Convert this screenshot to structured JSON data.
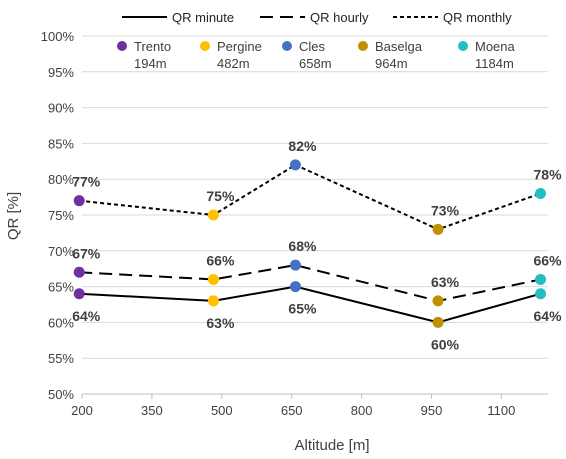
{
  "chart_data": {
    "type": "line",
    "xlabel": "Altitude [m]",
    "ylabel": "QR [%]",
    "xlim": [
      200,
      1200
    ],
    "ylim": [
      50,
      100
    ],
    "xticks": [
      "200",
      "350",
      "500",
      "650",
      "800",
      "950",
      "1100"
    ],
    "yticks": [
      "50%",
      "55%",
      "60%",
      "65%",
      "70%",
      "75%",
      "80%",
      "85%",
      "90%",
      "95%",
      "100%"
    ],
    "grid": "horizontal",
    "legend_position": "top",
    "x": [
      194,
      482,
      658,
      964,
      1184
    ],
    "sites": [
      {
        "name": "Trento",
        "altitude_label": "194m",
        "color": "#7030a0"
      },
      {
        "name": "Pergine",
        "altitude_label": "482m",
        "color": "#ffc000"
      },
      {
        "name": "Cles",
        "altitude_label": "658m",
        "color": "#4472c4"
      },
      {
        "name": "Baselga",
        "altitude_label": "964m",
        "color": "#bf9000"
      },
      {
        "name": "Moena",
        "altitude_label": "1184m",
        "color": "#21bfc4"
      }
    ],
    "series": [
      {
        "name": "QR minute",
        "dash": "solid",
        "values": [
          64,
          63,
          65,
          60,
          64
        ],
        "labels": [
          "64%",
          "63%",
          "65%",
          "60%",
          "64%"
        ],
        "label_side": "below"
      },
      {
        "name": "QR hourly",
        "dash": "long-dash",
        "values": [
          67,
          66,
          68,
          63,
          66
        ],
        "labels": [
          "67%",
          "66%",
          "68%",
          "63%",
          "66%"
        ],
        "label_side": "above"
      },
      {
        "name": "QR monthly",
        "dash": "short-dash",
        "values": [
          77,
          75,
          82,
          73,
          78
        ],
        "labels": [
          "77%",
          "75%",
          "82%",
          "73%",
          "78%"
        ],
        "label_side": "above"
      }
    ]
  }
}
